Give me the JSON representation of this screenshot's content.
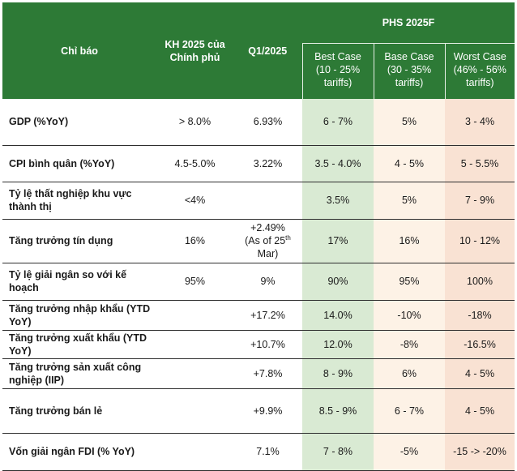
{
  "header": {
    "indicator": "Chỉ báo",
    "plan": "KH 2025 của Chính phủ",
    "q1": "Q1/2025",
    "phs": "PHS 2025F",
    "best": "Best Case (10 - 25% tariffs)",
    "base": "Base Case (30 - 35% tariffs)",
    "worst": "Worst Case (46% - 56% tariffs)"
  },
  "rows": [
    {
      "label": "GDP (%YoY)",
      "plan": "> 8.0%",
      "q1": "6.93%",
      "best": "6 - 7%",
      "base": "5%",
      "worst": "3 - 4%"
    },
    {
      "label": "CPI bình quân (%YoY)",
      "plan": "4.5-5.0%",
      "q1": "3.22%",
      "best": "3.5 - 4.0%",
      "base": "4 - 5%",
      "worst": "5 - 5.5%"
    },
    {
      "label": "Tỷ lệ thất nghiệp khu vực thành thị",
      "plan": "<4%",
      "q1": "",
      "best": "3.5%",
      "base": "5%",
      "worst": "7 - 9%"
    },
    {
      "label": "Tăng trưởng tín dụng",
      "plan": "16%",
      "q1_main": "+2.49%",
      "q1_note_pre": "(As of 25",
      "q1_note_sup": "th",
      "q1_note_post": "Mar)",
      "best": "17%",
      "base": "16%",
      "worst": "10 - 12%"
    },
    {
      "label": "Tỷ lệ giải ngân so với kế hoạch",
      "plan": "95%",
      "q1": "9%",
      "best": "90%",
      "base": "95%",
      "worst": "100%"
    },
    {
      "label": "Tăng trưởng nhập khẩu (YTD YoY)",
      "plan": "",
      "q1": "+17.2%",
      "best": "14.0%",
      "base": "-10%",
      "worst": "-18%"
    },
    {
      "label": "Tăng trưởng xuất khẩu (YTD YoY)",
      "plan": "",
      "q1": "+10.7%",
      "best": "12.0%",
      "base": "-8%",
      "worst": "-16.5%"
    },
    {
      "label": "Tăng trưởng sản xuất công nghiệp (IIP)",
      "plan": "",
      "q1": "+7.8%",
      "best": "8 - 9%",
      "base": "6%",
      "worst": "4 - 5%"
    },
    {
      "label": "Tăng trưởng bán lẻ",
      "plan": "",
      "q1": "+9.9%",
      "best": "8.5 - 9%",
      "base": "6 - 7%",
      "worst": "4 - 5%"
    },
    {
      "label": "Vốn giải ngân FDI (% YoY)",
      "plan": "",
      "q1": "7.1%",
      "best": "7 - 8%",
      "base": "-5%",
      "worst": "-15 -> -20%"
    }
  ],
  "colors": {
    "header_green": "#2d7a36",
    "best_bg": "#d9ead3",
    "base_bg": "#fdf2e6",
    "worst_bg": "#f9e2d3"
  }
}
